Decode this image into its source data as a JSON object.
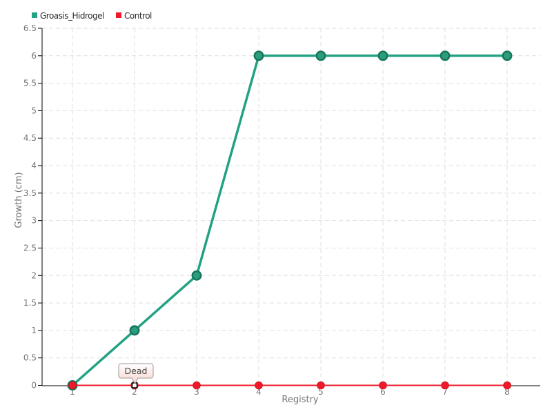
{
  "chart_data": {
    "type": "line",
    "x": [
      1,
      2,
      3,
      4,
      5,
      6,
      7,
      8
    ],
    "series": [
      {
        "name": "Groasis_Hidrogel",
        "color": "#22a183",
        "marker_fill": "#2a9d7e",
        "marker_stroke": "#17765a",
        "line_width": 3.5,
        "marker_radius": 6.2,
        "values": [
          0,
          1,
          2,
          6,
          6,
          6,
          6,
          6
        ]
      },
      {
        "name": "Control",
        "color": "#f0192a",
        "marker_fill": "#f0192a",
        "marker_stroke": "#d5101e",
        "line_width": 2,
        "marker_radius": 5.3,
        "values": [
          0,
          0,
          0,
          0,
          0,
          0,
          0,
          0
        ]
      }
    ],
    "xlabel": "Registry",
    "ylabel": "Growth (cm)",
    "ylim": [
      0,
      6.5
    ],
    "y_tick_step": 0.5,
    "x_ticks": [
      1,
      2,
      3,
      4,
      5,
      6,
      7,
      8
    ],
    "grid": true,
    "grid_style": "dashed",
    "legend_position": "top-left",
    "annotation": {
      "text": "Dead",
      "series": "Control",
      "x": 2,
      "y": 0
    }
  },
  "tooltip": {
    "text": "Dead",
    "bg_top": "#ffffff",
    "bg_bottom": "#f8d3cd",
    "border": "#999999"
  }
}
